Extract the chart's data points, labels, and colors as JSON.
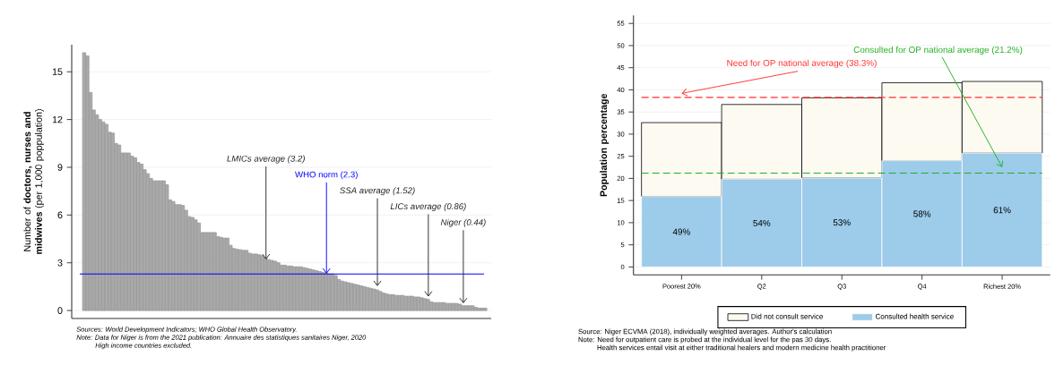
{
  "chart_data": [
    {
      "type": "bar",
      "ylabel": "Number of **doctors, nurses and midwives** (per 1,000 poppulation)",
      "categories": [
        null,
        null,
        null,
        null,
        null,
        null,
        null,
        null,
        null,
        null,
        null,
        null,
        null,
        null,
        null,
        null,
        null,
        null,
        null,
        null,
        null,
        null,
        null,
        null,
        null,
        null,
        null,
        null,
        null,
        null,
        null,
        null,
        null,
        null,
        null,
        null,
        null,
        null,
        null,
        null,
        null,
        null,
        null,
        null,
        null,
        null,
        null,
        null,
        null,
        null,
        null,
        null,
        null,
        null,
        null,
        null,
        null,
        null,
        null,
        null,
        null,
        null,
        null,
        null,
        null,
        null,
        null,
        null,
        null,
        null,
        null,
        null,
        null,
        null,
        null,
        null,
        null,
        null,
        null,
        null,
        null,
        null,
        null,
        null,
        null,
        null,
        null,
        null,
        null,
        null,
        null,
        null,
        null,
        null,
        null,
        null,
        null,
        null,
        null,
        null,
        null,
        null,
        null,
        null,
        null,
        null,
        null,
        null,
        null,
        null,
        null,
        null,
        null,
        null,
        null,
        null,
        null,
        null,
        null,
        null,
        null,
        null,
        null,
        null,
        null,
        null,
        null
      ],
      "values": [
        16.2,
        16.0,
        13.7,
        12.6,
        12.3,
        12.0,
        11.85,
        11.7,
        11.2,
        11.15,
        10.5,
        10.4,
        9.9,
        9.9,
        9.9,
        9.7,
        9.6,
        9.3,
        9.2,
        8.85,
        8.6,
        8.3,
        8.15,
        8.15,
        8.15,
        8.15,
        7.9,
        6.95,
        6.85,
        6.65,
        6.65,
        6.6,
        6.3,
        5.9,
        5.85,
        5.7,
        5.5,
        4.9,
        4.9,
        4.9,
        4.9,
        4.9,
        4.65,
        4.6,
        4.55,
        4.55,
        4.1,
        3.9,
        3.85,
        3.82,
        3.78,
        3.78,
        3.6,
        3.55,
        3.55,
        3.5,
        3.45,
        3.3,
        3.2,
        3.15,
        3.1,
        3.0,
        2.85,
        2.85,
        2.8,
        2.8,
        2.75,
        2.75,
        2.75,
        2.7,
        2.65,
        2.6,
        2.55,
        2.5,
        2.45,
        2.4,
        2.35,
        2.3,
        2.3,
        2.2,
        1.95,
        1.85,
        1.8,
        1.75,
        1.7,
        1.65,
        1.6,
        1.55,
        1.5,
        1.45,
        1.4,
        1.35,
        1.3,
        1.2,
        1.1,
        1.05,
        1.0,
        1.0,
        0.95,
        0.95,
        0.95,
        0.9,
        0.9,
        0.9,
        0.85,
        0.85,
        0.8,
        0.75,
        0.7,
        0.55,
        0.5,
        0.5,
        0.5,
        0.5,
        0.45,
        0.45,
        0.45,
        0.44,
        0.4,
        0.3,
        0.3,
        0.3,
        0.3,
        0.2,
        0.15,
        0.15,
        0.15
      ],
      "color": "#a9a9a9",
      "ylim": [
        -0.5,
        16.7
      ],
      "yticks": [
        0,
        3,
        6,
        9,
        12,
        15
      ],
      "grid": "y",
      "ref_lines": [
        {
          "axis": "y",
          "value": 2.3,
          "label": "WHO norm (2.3)",
          "color": "#0000ff"
        }
      ],
      "annotations": [
        {
          "text": "LMICs average (3.2)",
          "y": 3.2
        },
        {
          "text": "SSA average (1.52)",
          "y": 1.52
        },
        {
          "text": "LICs average (0.86)",
          "y": 0.86
        },
        {
          "text": "Niger (0.44)",
          "y": 0.44
        },
        "Sources: World Development Indicators; WHO Global Health Observatory.",
        "Note: Data for Niger is from the 2021 publication: Annuaire des statistiques sanitaires Niger, 2020",
        "High income countries excluded."
      ]
    },
    {
      "type": "bar",
      "stacked": true,
      "ylabel": "Population percentage",
      "categories": [
        "Poorest 20%",
        "Q2",
        "Q3",
        "Q4",
        "Richest 20%"
      ],
      "series": [
        {
          "name": "Consulted health service",
          "color": "#9dcbea",
          "values": [
            15.9,
            19.8,
            20.1,
            24.0,
            25.7
          ]
        },
        {
          "name": "Did not consult service",
          "color": "#fdfaf1",
          "values": [
            16.7,
            16.9,
            18.1,
            17.6,
            16.2
          ]
        }
      ],
      "ylim": [
        -1.8,
        56.8
      ],
      "yticks": [
        0,
        5,
        10,
        15,
        20,
        25,
        30,
        35,
        40,
        45,
        50,
        55
      ],
      "grid": "y",
      "legend": "bottom",
      "ref_lines": [
        {
          "axis": "y",
          "value": 38.3,
          "label": "Need for OP national average (38.3%)",
          "color": "#ff3030",
          "line_style": "dashed"
        },
        {
          "axis": "y",
          "value": 21.2,
          "label": "Consulted for OP national average (21.2%)",
          "color": "#22b022",
          "line_style": "dashed"
        }
      ],
      "annotations": [
        "49%",
        "54%",
        "53%",
        "58%",
        "61%",
        "Source: Niger ECVMA (2018), individually weighted averages. Author's calculation",
        "Note: Need for outpatient care is probed at the individual level for the pas 30 days.",
        "Health services entail visit at either traditional healers and modern medicine health practitioner"
      ]
    }
  ]
}
